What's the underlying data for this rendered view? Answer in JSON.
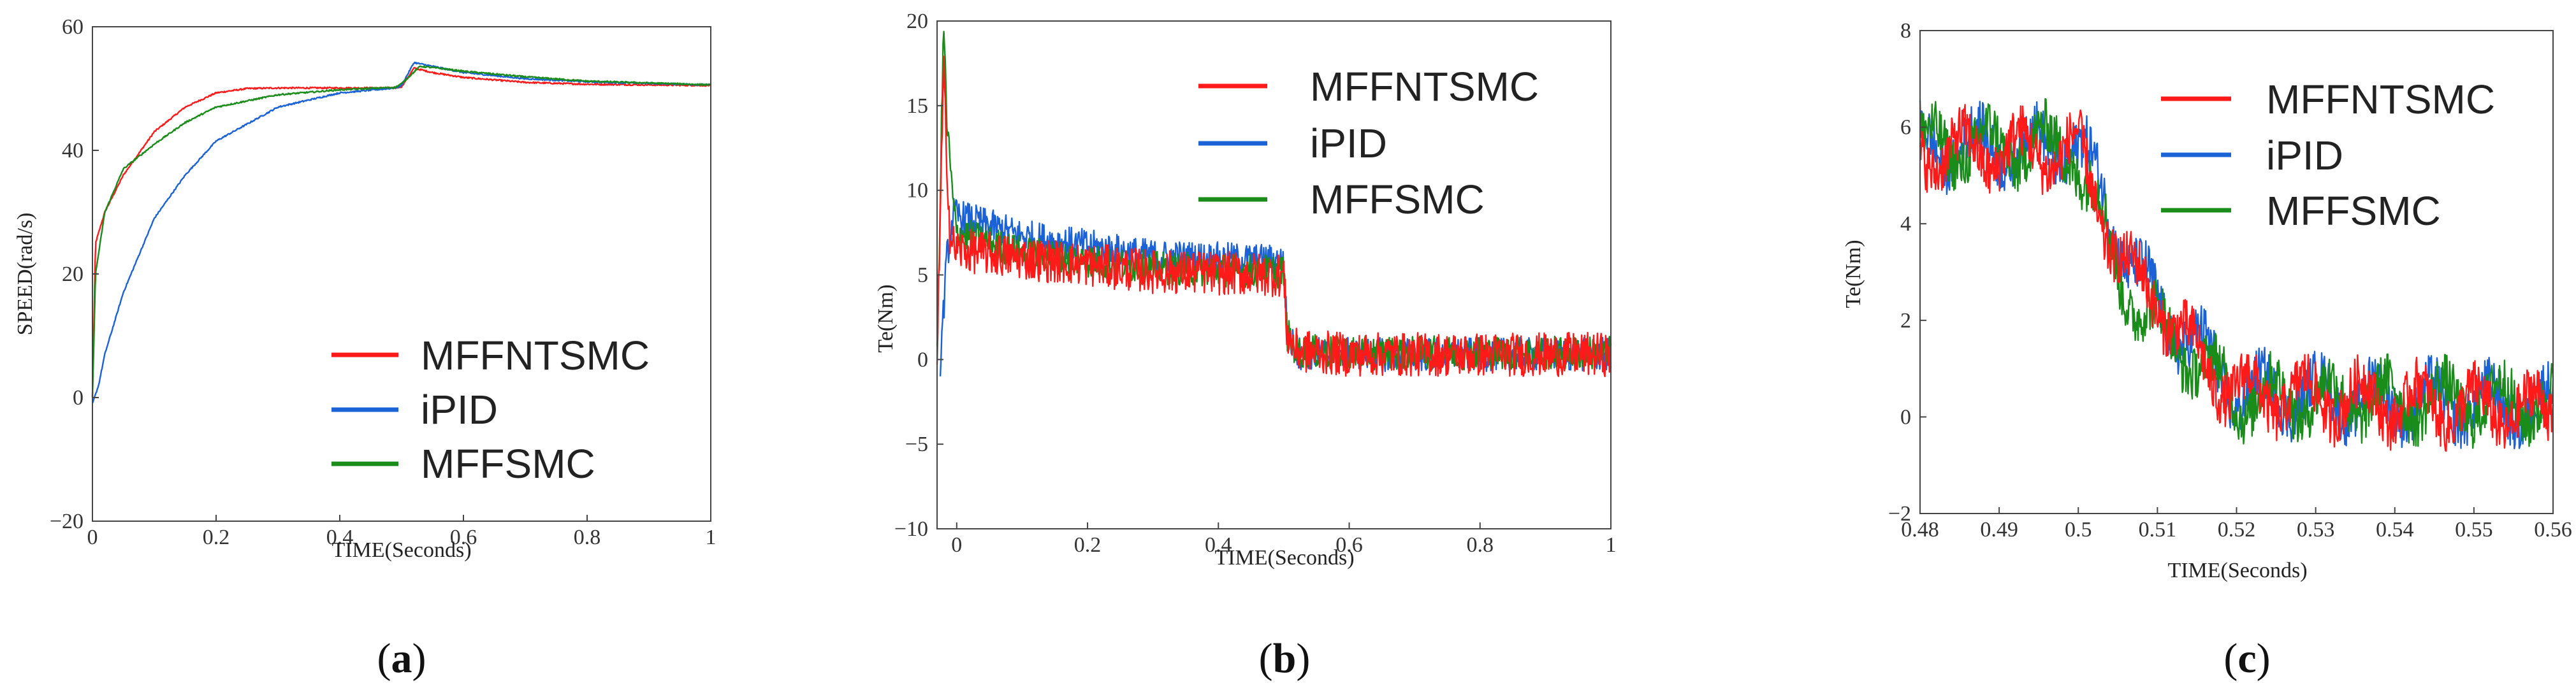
{
  "colors": {
    "MFFNTSMC": "#ff1a1a",
    "iPID": "#1a62d6",
    "MFFSMC": "#1a8c1a"
  },
  "chart_data": [
    {
      "type": "line",
      "caption_letter": "a",
      "xlabel": "TIME(Seconds)",
      "ylabel": "SPEED(rad/s)",
      "xlim": [
        0,
        1
      ],
      "ylim": [
        -20,
        60
      ],
      "xticks": [
        0,
        0.2,
        0.4,
        0.6,
        0.8,
        1
      ],
      "xtick_labels": [
        "0",
        "0.2",
        "0.4",
        "0.6",
        "0.8",
        "1"
      ],
      "yticks": [
        -20,
        0,
        20,
        40,
        60
      ],
      "ytick_labels": [
        "−20",
        "0",
        "20",
        "40",
        "60"
      ],
      "legend": [
        "MFFNTSMC",
        "iPID",
        "MFFSMC"
      ],
      "series": [
        {
          "name": "MFFNTSMC",
          "noise": 0.12,
          "x": [
            0,
            0.005,
            0.02,
            0.05,
            0.1,
            0.15,
            0.2,
            0.25,
            0.3,
            0.4,
            0.49,
            0.5,
            0.52,
            0.55,
            0.6,
            0.7,
            0.8,
            1.0
          ],
          "y": [
            0,
            25,
            30,
            36,
            43,
            47,
            49.3,
            50,
            50.1,
            50.1,
            50.1,
            50.3,
            53.3,
            52.6,
            51.8,
            51.0,
            50.7,
            50.5
          ]
        },
        {
          "name": "iPID",
          "noise": 0.12,
          "x": [
            0,
            0.01,
            0.02,
            0.05,
            0.1,
            0.15,
            0.2,
            0.3,
            0.4,
            0.49,
            0.5,
            0.52,
            0.55,
            0.6,
            0.7,
            0.8,
            1.0
          ],
          "y": [
            -1,
            2,
            7,
            17,
            29,
            36,
            41.5,
            47,
            49.3,
            50.1,
            50.5,
            54.2,
            53.6,
            52.6,
            51.6,
            51.1,
            50.6
          ]
        },
        {
          "name": "MFFSMC",
          "noise": 0.12,
          "x": [
            0,
            0.005,
            0.02,
            0.05,
            0.1,
            0.15,
            0.2,
            0.3,
            0.4,
            0.49,
            0.5,
            0.53,
            0.56,
            0.6,
            0.7,
            0.8,
            1.0
          ],
          "y": [
            0,
            20,
            30,
            37,
            41,
            44.5,
            47,
            49,
            49.8,
            50.2,
            50.8,
            53.6,
            53.3,
            52.8,
            51.9,
            51.2,
            50.6
          ]
        }
      ]
    },
    {
      "type": "line",
      "caption_letter": "b",
      "xlabel": "TIME(Seconds)",
      "ylabel": "Te(Nm)",
      "xlim": [
        -0.03,
        1
      ],
      "ylim": [
        -10,
        20
      ],
      "xticks": [
        0,
        0.2,
        0.4,
        0.6,
        0.8,
        1
      ],
      "xtick_labels": [
        "0",
        "0.2",
        "0.4",
        "0.6",
        "0.8",
        "1"
      ],
      "yticks": [
        -10,
        -5,
        0,
        5,
        10,
        15,
        20
      ],
      "ytick_labels": [
        "−10",
        "−5",
        "0",
        "5",
        "10",
        "15",
        "20"
      ],
      "legend": [
        "MFFNTSMC",
        "iPID",
        "MFFSMC"
      ],
      "series": [
        {
          "name": "iPID",
          "noise": 1.0,
          "x": [
            -0.025,
            -0.015,
            -0.005,
            0.0,
            0.1,
            0.3,
            0.5,
            0.505,
            0.52,
            0.6,
            0.8,
            1.0
          ],
          "y": [
            0,
            6,
            8.6,
            8.5,
            7.3,
            6.1,
            5.8,
            1.5,
            0.4,
            0.3,
            0.3,
            0.3
          ]
        },
        {
          "name": "MFFSMC",
          "noise": 1.0,
          "x": [
            -0.03,
            -0.02,
            -0.015,
            -0.005,
            0.0,
            0.1,
            0.3,
            0.5,
            0.505,
            0.52,
            0.6,
            0.8,
            1.0
          ],
          "y": [
            0,
            20,
            14,
            9,
            7.5,
            6.3,
            5.4,
            5.2,
            1.5,
            0.5,
            0.4,
            0.4,
            0.4
          ]
        },
        {
          "name": "MFFNTSMC",
          "noise": 1.3,
          "x": [
            -0.03,
            -0.02,
            -0.01,
            0.0,
            0.1,
            0.3,
            0.5,
            0.505,
            0.52,
            0.6,
            0.8,
            1.0
          ],
          "y": [
            0,
            17,
            7,
            6.5,
            6,
            5.2,
            5,
            1.5,
            0.5,
            0.3,
            0.3,
            0.3
          ]
        }
      ]
    },
    {
      "type": "line",
      "caption_letter": "c",
      "xlabel": "TIME(Seconds)",
      "ylabel": "Te(Nm)",
      "xlim": [
        0.48,
        0.56
      ],
      "ylim": [
        -2,
        8
      ],
      "xticks": [
        0.48,
        0.49,
        0.5,
        0.51,
        0.52,
        0.53,
        0.54,
        0.55,
        0.56
      ],
      "xtick_labels": [
        "0.48",
        "0.49",
        "0.5",
        "0.51",
        "0.52",
        "0.53",
        "0.54",
        "0.55",
        "0.56"
      ],
      "yticks": [
        -2,
        0,
        2,
        4,
        6,
        8
      ],
      "ytick_labels": [
        "−2",
        "0",
        "2",
        "4",
        "6",
        "8"
      ],
      "legend": [
        "MFFNTSMC",
        "iPID",
        "MFFSMC"
      ],
      "series": [
        {
          "name": "iPID",
          "noise": 0.55,
          "wave": {
            "amp": 0.45,
            "period": 0.0072,
            "phase": 1.6
          },
          "x": [
            0.48,
            0.5,
            0.502,
            0.506,
            0.51,
            0.512,
            0.515,
            0.52,
            0.56
          ],
          "y": [
            5.6,
            5.6,
            5.0,
            3.4,
            2.3,
            1.9,
            1.5,
            0.5,
            0.2
          ]
        },
        {
          "name": "MFFSMC",
          "noise": 0.55,
          "wave": {
            "amp": 0.45,
            "period": 0.0072,
            "phase": 0.4
          },
          "x": [
            0.48,
            0.499,
            0.502,
            0.505,
            0.508,
            0.512,
            0.52,
            0.56
          ],
          "y": [
            5.6,
            5.6,
            4.5,
            3.0,
            2.2,
            1.6,
            0.4,
            0.3
          ]
        },
        {
          "name": "MFFNTSMC",
          "noise": 0.55,
          "wave": {
            "amp": 0.45,
            "period": 0.0072,
            "phase": 3.1
          },
          "x": [
            0.48,
            0.5,
            0.503,
            0.506,
            0.51,
            0.514,
            0.52,
            0.56
          ],
          "y": [
            5.5,
            5.5,
            4.2,
            3.0,
            2.5,
            1.4,
            0.5,
            0.1
          ]
        }
      ]
    }
  ]
}
